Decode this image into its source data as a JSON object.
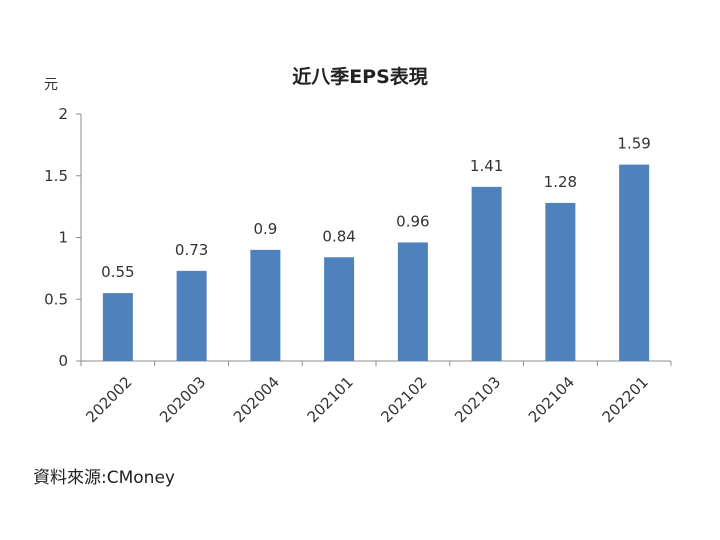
{
  "chart_data": {
    "type": "bar",
    "title": "近八季EPS表現",
    "ylabel": "元",
    "categories": [
      "202002",
      "202003",
      "202004",
      "202101",
      "202102",
      "202103",
      "202104",
      "202201"
    ],
    "values": [
      0.55,
      0.73,
      0.9,
      0.84,
      0.96,
      1.41,
      1.28,
      1.59
    ],
    "value_labels": [
      "0.55",
      "0.73",
      "0.9",
      "0.84",
      "0.96",
      "1.41",
      "1.28",
      "1.59"
    ],
    "ylim": [
      0,
      2
    ],
    "yticks": [
      0,
      0.5,
      1,
      1.5,
      2
    ],
    "ytick_labels": [
      "0",
      "0.5",
      "1",
      "1.5",
      "2"
    ],
    "grid": false,
    "bar_color": "#4f81bd",
    "axis_color": "#8c8c8c"
  },
  "source_text": "資料來源:CMoney"
}
